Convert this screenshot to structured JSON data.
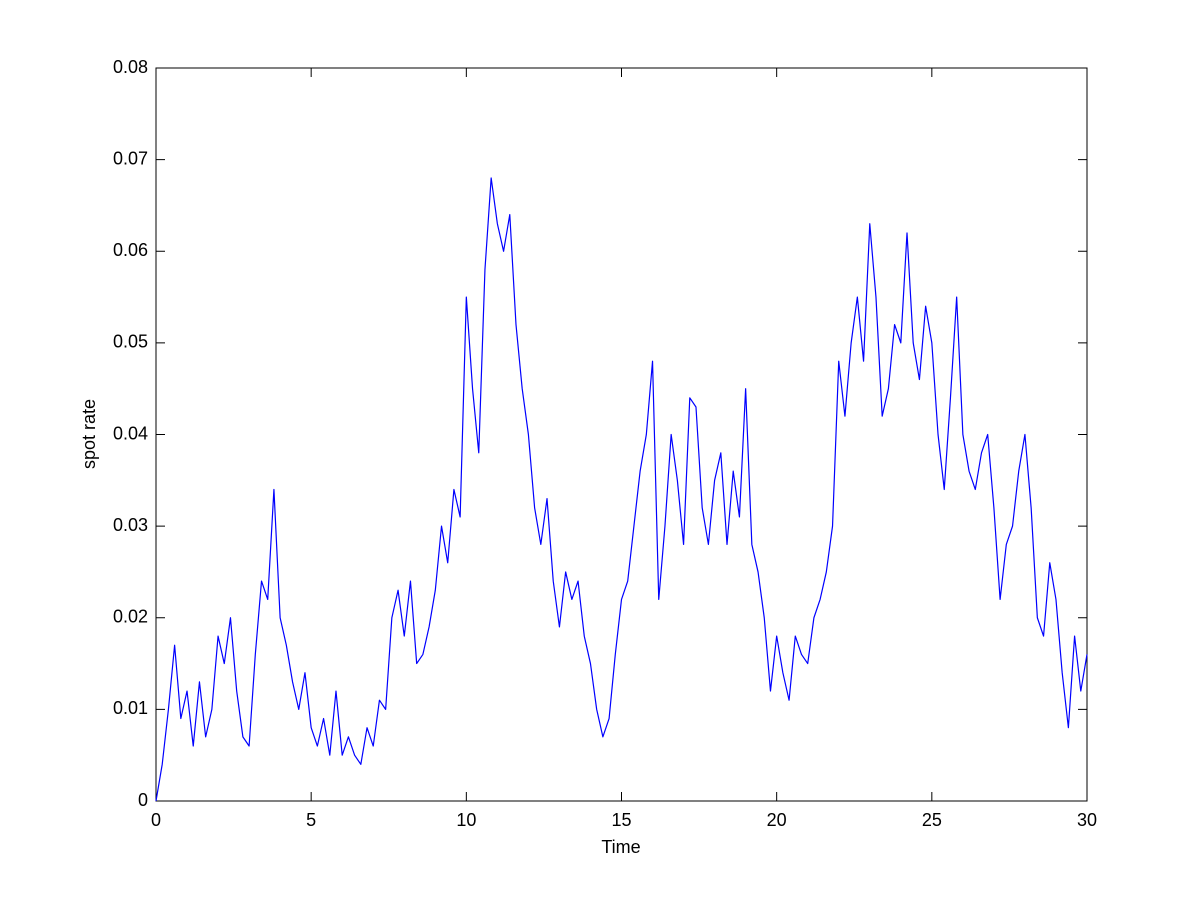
{
  "chart_data": {
    "type": "line",
    "x_label": "Time",
    "y_label": "spot rate",
    "x": [
      0,
      0.2,
      0.4,
      0.6,
      0.8,
      1.0,
      1.2,
      1.4,
      1.6,
      1.8,
      2.0,
      2.2,
      2.4,
      2.6,
      2.8,
      3.0,
      3.2,
      3.4,
      3.6,
      3.8,
      4.0,
      4.2,
      4.4,
      4.6,
      4.8,
      5.0,
      5.2,
      5.4,
      5.6,
      5.8,
      6.0,
      6.2,
      6.4,
      6.6,
      6.8,
      7.0,
      7.2,
      7.4,
      7.6,
      7.8,
      8.0,
      8.2,
      8.4,
      8.6,
      8.8,
      9.0,
      9.2,
      9.4,
      9.6,
      9.8,
      10.0,
      10.2,
      10.4,
      10.6,
      10.8,
      11.0,
      11.2,
      11.4,
      11.6,
      11.8,
      12.0,
      12.2,
      12.4,
      12.6,
      12.8,
      13.0,
      13.2,
      13.4,
      13.6,
      13.8,
      14.0,
      14.2,
      14.4,
      14.6,
      14.8,
      15.0,
      15.2,
      15.4,
      15.6,
      15.8,
      16.0,
      16.2,
      16.4,
      16.6,
      16.8,
      17.0,
      17.2,
      17.4,
      17.6,
      17.8,
      18.0,
      18.2,
      18.4,
      18.6,
      18.8,
      19.0,
      19.2,
      19.4,
      19.6,
      19.8,
      20.0,
      20.2,
      20.4,
      20.6,
      20.8,
      21.0,
      21.2,
      21.4,
      21.6,
      21.8,
      22.0,
      22.2,
      22.4,
      22.6,
      22.8,
      23.0,
      23.2,
      23.4,
      23.6,
      23.8,
      24.0,
      24.2,
      24.4,
      24.6,
      24.8,
      25.0,
      25.2,
      25.4,
      25.6,
      25.8,
      26.0,
      26.2,
      26.4,
      26.6,
      26.8,
      27.0,
      27.2,
      27.4,
      27.6,
      27.8,
      28.0,
      28.2,
      28.4,
      28.6,
      28.8,
      29.0,
      29.2,
      29.4,
      29.6,
      29.8,
      30.0
    ],
    "series": [
      {
        "color": "#0000ff",
        "values": [
          0,
          0.004,
          0.01,
          0.017,
          0.009,
          0.012,
          0.006,
          0.013,
          0.007,
          0.01,
          0.018,
          0.015,
          0.02,
          0.012,
          0.007,
          0.006,
          0.016,
          0.024,
          0.022,
          0.034,
          0.02,
          0.017,
          0.013,
          0.01,
          0.014,
          0.008,
          0.006,
          0.009,
          0.005,
          0.012,
          0.005,
          0.007,
          0.005,
          0.004,
          0.008,
          0.006,
          0.011,
          0.01,
          0.02,
          0.023,
          0.018,
          0.024,
          0.015,
          0.016,
          0.019,
          0.023,
          0.03,
          0.026,
          0.034,
          0.031,
          0.055,
          0.045,
          0.038,
          0.058,
          0.068,
          0.063,
          0.06,
          0.064,
          0.052,
          0.045,
          0.04,
          0.032,
          0.028,
          0.033,
          0.024,
          0.019,
          0.025,
          0.022,
          0.024,
          0.018,
          0.015,
          0.01,
          0.007,
          0.009,
          0.016,
          0.022,
          0.024,
          0.03,
          0.036,
          0.04,
          0.048,
          0.022,
          0.03,
          0.04,
          0.035,
          0.028,
          0.044,
          0.043,
          0.032,
          0.028,
          0.035,
          0.038,
          0.028,
          0.036,
          0.031,
          0.045,
          0.028,
          0.025,
          0.02,
          0.012,
          0.018,
          0.014,
          0.011,
          0.018,
          0.016,
          0.015,
          0.02,
          0.022,
          0.025,
          0.03,
          0.048,
          0.042,
          0.05,
          0.055,
          0.048,
          0.063,
          0.055,
          0.042,
          0.045,
          0.052,
          0.05,
          0.062,
          0.05,
          0.046,
          0.054,
          0.05,
          0.04,
          0.034,
          0.044,
          0.055,
          0.04,
          0.036,
          0.034,
          0.038,
          0.04,
          0.032,
          0.022,
          0.028,
          0.03,
          0.036,
          0.04,
          0.032,
          0.02,
          0.018,
          0.026,
          0.022,
          0.014,
          0.008,
          0.018,
          0.012,
          0.016
        ]
      }
    ],
    "xlim": [
      0,
      30
    ],
    "xticks": [
      0,
      5,
      10,
      15,
      20,
      25,
      30
    ],
    "ylim": [
      0,
      0.08
    ],
    "yticks": [
      0,
      0.01,
      0.02,
      0.03,
      0.04,
      0.05,
      0.06,
      0.07,
      0.08
    ],
    "grid": false
  }
}
